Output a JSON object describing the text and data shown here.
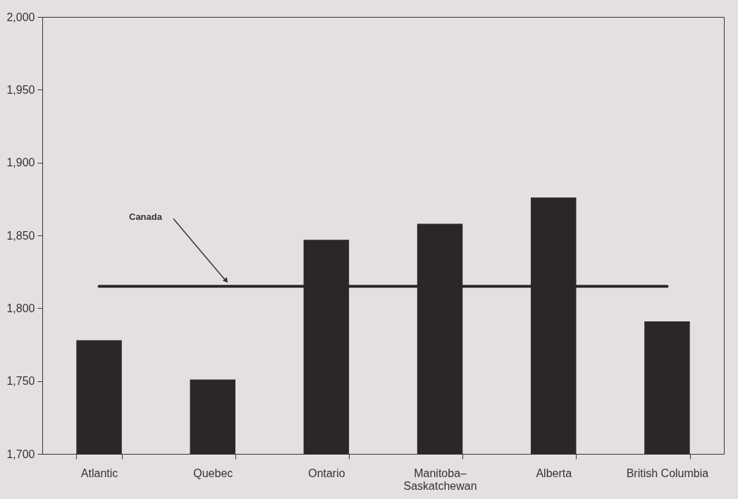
{
  "chart_data": {
    "type": "bar",
    "categories": [
      "Atlantic",
      "Quebec",
      "Ontario",
      "Manitoba–Saskatchewan",
      "Alberta",
      "British Columbia"
    ],
    "values": [
      1778,
      1751,
      1847,
      1858,
      1876,
      1791
    ],
    "color": "#2b2628",
    "ylim": [
      1700,
      2000
    ],
    "yticks": [
      {
        "value": 1700,
        "label": "1,700"
      },
      {
        "value": 1750,
        "label": "1,750"
      },
      {
        "value": 1800,
        "label": "1,800"
      },
      {
        "value": 1850,
        "label": "1,850"
      },
      {
        "value": 1900,
        "label": "1,900"
      },
      {
        "value": 1950,
        "label": "1,950"
      },
      {
        "value": 2000,
        "label": "2,000"
      }
    ],
    "grid": false,
    "ref_lines": [
      {
        "axis": "y",
        "value": 1815,
        "label": "Canada",
        "color": "#2b2628"
      }
    ]
  }
}
